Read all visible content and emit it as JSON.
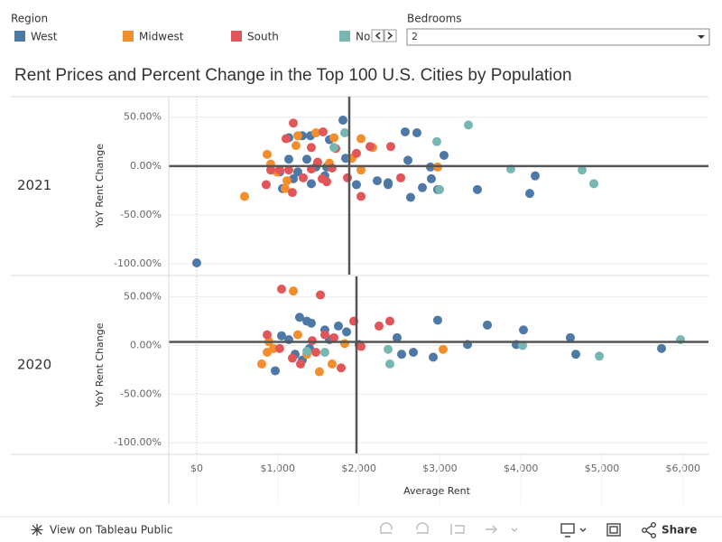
{
  "header": {
    "title": "Rent Prices and Percent Change in the Top 100 U.S. Cities by Population"
  },
  "legend": {
    "title": "Region"
  },
  "filter": {
    "label": "Bedrooms",
    "value": "2"
  },
  "toolbar": {
    "view": "View on Tableau Public",
    "share": "Share"
  },
  "chart_data": [
    {
      "type": "scatter",
      "row_label": "2021",
      "ylabel": "YoY Rent Change",
      "xlim": [
        -345,
        6314
      ],
      "ylim": [
        -111,
        71
      ],
      "yticks": [
        {
          "value": 50,
          "label": "50.00%"
        },
        {
          "value": 0,
          "label": "0.00%"
        },
        {
          "value": -50,
          "label": "-50.00%"
        },
        {
          "value": -100,
          "label": "-100.00%"
        }
      ],
      "grid": true,
      "ref_lines": {
        "x": 1882,
        "y": 0
      },
      "series": [
        {
          "name": "West",
          "color": "#4e79a7",
          "x": [
            0,
            1804,
            2572,
            2717,
            3051,
            2606,
            2884,
            2784,
            2639,
            2895,
            2973,
            3463,
            4109,
            4176,
            2361,
            2361,
            2227,
            1971,
            1604,
            1637,
            1403,
            1303,
            1136,
            1136,
            1359,
            1470,
            1058,
            1192,
            1414,
            1581,
            1837,
            1024,
            1247
          ],
          "values": [
            -99,
            47,
            35,
            34,
            11,
            6,
            -1,
            -22,
            -32,
            -13,
            -24,
            -24,
            -28,
            -10,
            -17,
            -19,
            -15,
            -19,
            -1,
            27,
            31,
            31,
            29,
            7,
            7,
            -1,
            -23,
            -13,
            -18,
            -10,
            8,
            -6,
            -6
          ]
        },
        {
          "name": "Midwest",
          "color": "#f28e2b",
          "x": [
            590,
            869,
            913,
            991,
            1114,
            1091,
            1225,
            1247,
            1470,
            1693,
            2027,
            2171,
            2027,
            2973,
            1637,
            1915
          ],
          "values": [
            -31,
            12,
            2,
            -6,
            -15,
            -23,
            21,
            31,
            34,
            29,
            28,
            19,
            -4,
            -1,
            3,
            8
          ]
        },
        {
          "name": "South",
          "color": "#e15759",
          "x": [
            1192,
            1102,
            1414,
            1559,
            1715,
            1604,
            1548,
            1860,
            2027,
            2138,
            2394,
            2517,
            857,
            1024,
            1136,
            1180,
            1314,
            1414,
            1492,
            1670,
            1971,
            913
          ],
          "values": [
            44,
            28,
            19,
            35,
            18,
            -16,
            -13,
            -12,
            -31,
            20,
            20,
            -12,
            -19,
            -4,
            -4,
            -27,
            -12,
            -3,
            4,
            -2,
            13,
            -4
          ]
        },
        {
          "name": "Northeast",
          "color": "#76b7b2",
          "x": [
            3352,
            2962,
            3875,
            4755,
            4900,
            2996,
            1826,
            1693
          ],
          "values": [
            42,
            25,
            -3,
            -4,
            -18,
            -24,
            34,
            19
          ]
        }
      ]
    },
    {
      "type": "scatter",
      "row_label": "2020",
      "ylabel": "YoY Rent Change",
      "xlabel": "Average Rent",
      "xlim": [
        -345,
        6314
      ],
      "ylim": [
        -111,
        71
      ],
      "xticks": [
        {
          "value": 0,
          "label": "$0"
        },
        {
          "value": 1000,
          "label": "$1,000"
        },
        {
          "value": 2000,
          "label": "$2,000"
        },
        {
          "value": 3000,
          "label": "$3,000"
        },
        {
          "value": 4000,
          "label": "$4,000"
        },
        {
          "value": 5000,
          "label": "$5,000"
        },
        {
          "value": 6000,
          "label": "$6,000"
        }
      ],
      "yticks": [
        {
          "value": 50,
          "label": "50.00%"
        },
        {
          "value": 0,
          "label": "0.00%"
        },
        {
          "value": -50,
          "label": "-50.00%"
        },
        {
          "value": -100,
          "label": "-100.00%"
        }
      ],
      "grid": true,
      "ref_lines": {
        "x": 1971,
        "y": 3.7
      },
      "series": [
        {
          "name": "West",
          "color": "#4e79a7",
          "x": [
            969,
            1047,
            1269,
            1359,
            1414,
            1581,
            1748,
            1849,
            2472,
            2973,
            3586,
            4031,
            4610,
            5735,
            3341,
            3942,
            4677,
            2673,
            2528,
            2918,
            2004,
            1392,
            1214,
            1136,
            1637,
            1303
          ],
          "values": [
            -26,
            10,
            29,
            25,
            23,
            16,
            20,
            14,
            8,
            26,
            21,
            16,
            8,
            -3,
            1,
            1,
            -9,
            -7,
            -9,
            -12,
            1,
            -3,
            -9,
            6,
            6,
            -15
          ]
        },
        {
          "name": "Midwest",
          "color": "#f28e2b",
          "x": [
            1192,
            802,
            869,
            947,
            1247,
            1514,
            1670,
            3040,
            1826,
            1359,
            891
          ],
          "values": [
            56,
            -19,
            -7,
            -3,
            11,
            -27,
            -19,
            -4,
            2,
            -9,
            4
          ]
        },
        {
          "name": "South",
          "color": "#e15759",
          "x": [
            1047,
            1526,
            869,
            1180,
            1281,
            1425,
            1693,
            1782,
            1938,
            2249,
            2383,
            2027,
            1470,
            1581,
            1024
          ],
          "values": [
            58,
            52,
            11,
            -13,
            -19,
            5,
            8,
            -23,
            25,
            20,
            25,
            -1,
            -7,
            11,
            -3
          ]
        },
        {
          "name": "Northeast",
          "color": "#76b7b2",
          "x": [
            2361,
            2383,
            4967,
            5969,
            4020,
            1581,
            1359
          ],
          "values": [
            -4,
            -19,
            -11,
            6,
            0,
            -7,
            -6
          ]
        }
      ]
    }
  ]
}
